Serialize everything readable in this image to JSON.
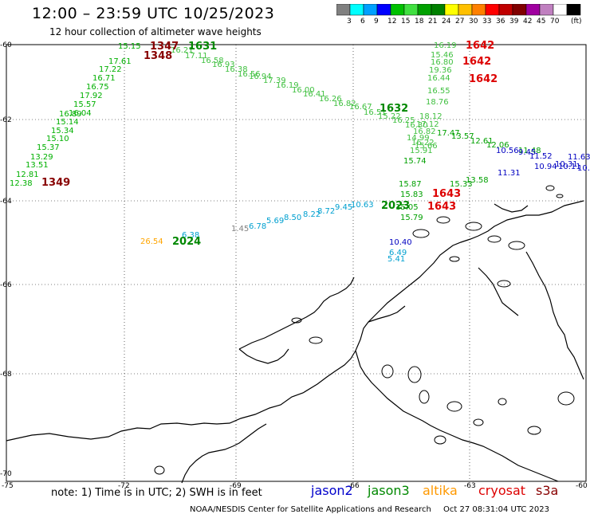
{
  "header": {
    "title": "12:00 – 23:59 UTC 10/25/2023",
    "subtitle": "12 hour collection of altimeter wave heights"
  },
  "colorbar": {
    "colors": [
      "#808080",
      "#00ffff",
      "#00a0ff",
      "#0000ff",
      "#00c000",
      "#40e040",
      "#00a000",
      "#008000",
      "#ffff00",
      "#ffc000",
      "#ff8000",
      "#ff0000",
      "#c00000",
      "#800000",
      "#a000a0",
      "#c080c0",
      "#ffffff",
      "#000000"
    ],
    "labels": [
      "3",
      "6",
      "9",
      "12",
      "15",
      "18",
      "21",
      "24",
      "27",
      "30",
      "33",
      "36",
      "39",
      "42",
      "45",
      "70"
    ],
    "unit": "(ft)"
  },
  "axes": {
    "lat_labels": [
      "-60",
      "-62",
      "-64",
      "-66",
      "-68",
      "-70"
    ],
    "lon_labels": [
      "-75",
      "-72",
      "-69",
      "-66",
      "-63",
      "-60"
    ]
  },
  "footer": {
    "note": "note:  1) Time is in UTC;  2) SWH is in feet",
    "missions": [
      {
        "name": "jason2",
        "color": "#0000cc"
      },
      {
        "name": "jason3",
        "color": "#008800"
      },
      {
        "name": "altika",
        "color": "#ff9900"
      },
      {
        "name": "cryosat",
        "color": "#dd0000"
      },
      {
        "name": "s3a",
        "color": "#880000"
      }
    ],
    "credit": "NOAA/NESDIS Center for Satellite Applications and Research",
    "timestamp": "Oct 27 08:31:04 UTC 2023"
  },
  "tracks": [
    {
      "color": "#00b000",
      "labels": [
        "12.38",
        "12.81",
        "13.51",
        "13.29",
        "15.37",
        "15.10",
        "15.34",
        "15.14",
        "16.89",
        "16.04",
        "15.57",
        "17.92",
        "16.75",
        "16.71",
        "17.22",
        "17.61",
        "15.15"
      ]
    },
    {
      "color": "#40c040",
      "labels": [
        "16.21",
        "17.11",
        "16.58",
        "16.93",
        "16.38",
        "16.56",
        "16.94",
        "17.39",
        "16.19",
        "16.00",
        "16.41",
        "16.26",
        "16.82",
        "16.67",
        "16.51",
        "15.22",
        "16.25",
        "16.30"
      ]
    },
    {
      "color": "#40c040",
      "labels": [
        "16.19",
        "15.46",
        "16.80",
        "16.44",
        "19.36",
        "16.55",
        "18.76",
        "18.12",
        "17.12",
        "16.82",
        "16.22",
        "15.91",
        "14.99",
        "15.66"
      ]
    },
    {
      "color": "#00a000",
      "labels": [
        "17.47",
        "13.57",
        "12.61",
        "12.06",
        "11.48",
        "15.74",
        "15.87",
        "15.05",
        "15.33",
        "13.58",
        "15.83",
        "15.79"
      ]
    },
    {
      "color": "#00a0d0",
      "labels": [
        "6.78",
        "5.69",
        "8.50",
        "8.22",
        "8.72",
        "9.45",
        "10.63",
        "6.38",
        "5.41",
        "6.49"
      ]
    },
    {
      "color": "#0000c0",
      "labels": [
        "10.56",
        "11.52",
        "10.31",
        "11.31",
        "10.40",
        "9.45",
        "11.63",
        "10.94",
        "10.11",
        "10.1"
      ]
    }
  ],
  "other_labels": {
    "gray": [
      "1.45"
    ],
    "altika": [
      "26.54"
    ],
    "jason3_times": [
      "1631",
      "1632",
      "2024",
      "2023"
    ],
    "s3a_times": [
      "1347",
      "1348",
      "1349"
    ],
    "cryosat_times": [
      "1642",
      "1642",
      "1642",
      "1643",
      "1643"
    ]
  }
}
